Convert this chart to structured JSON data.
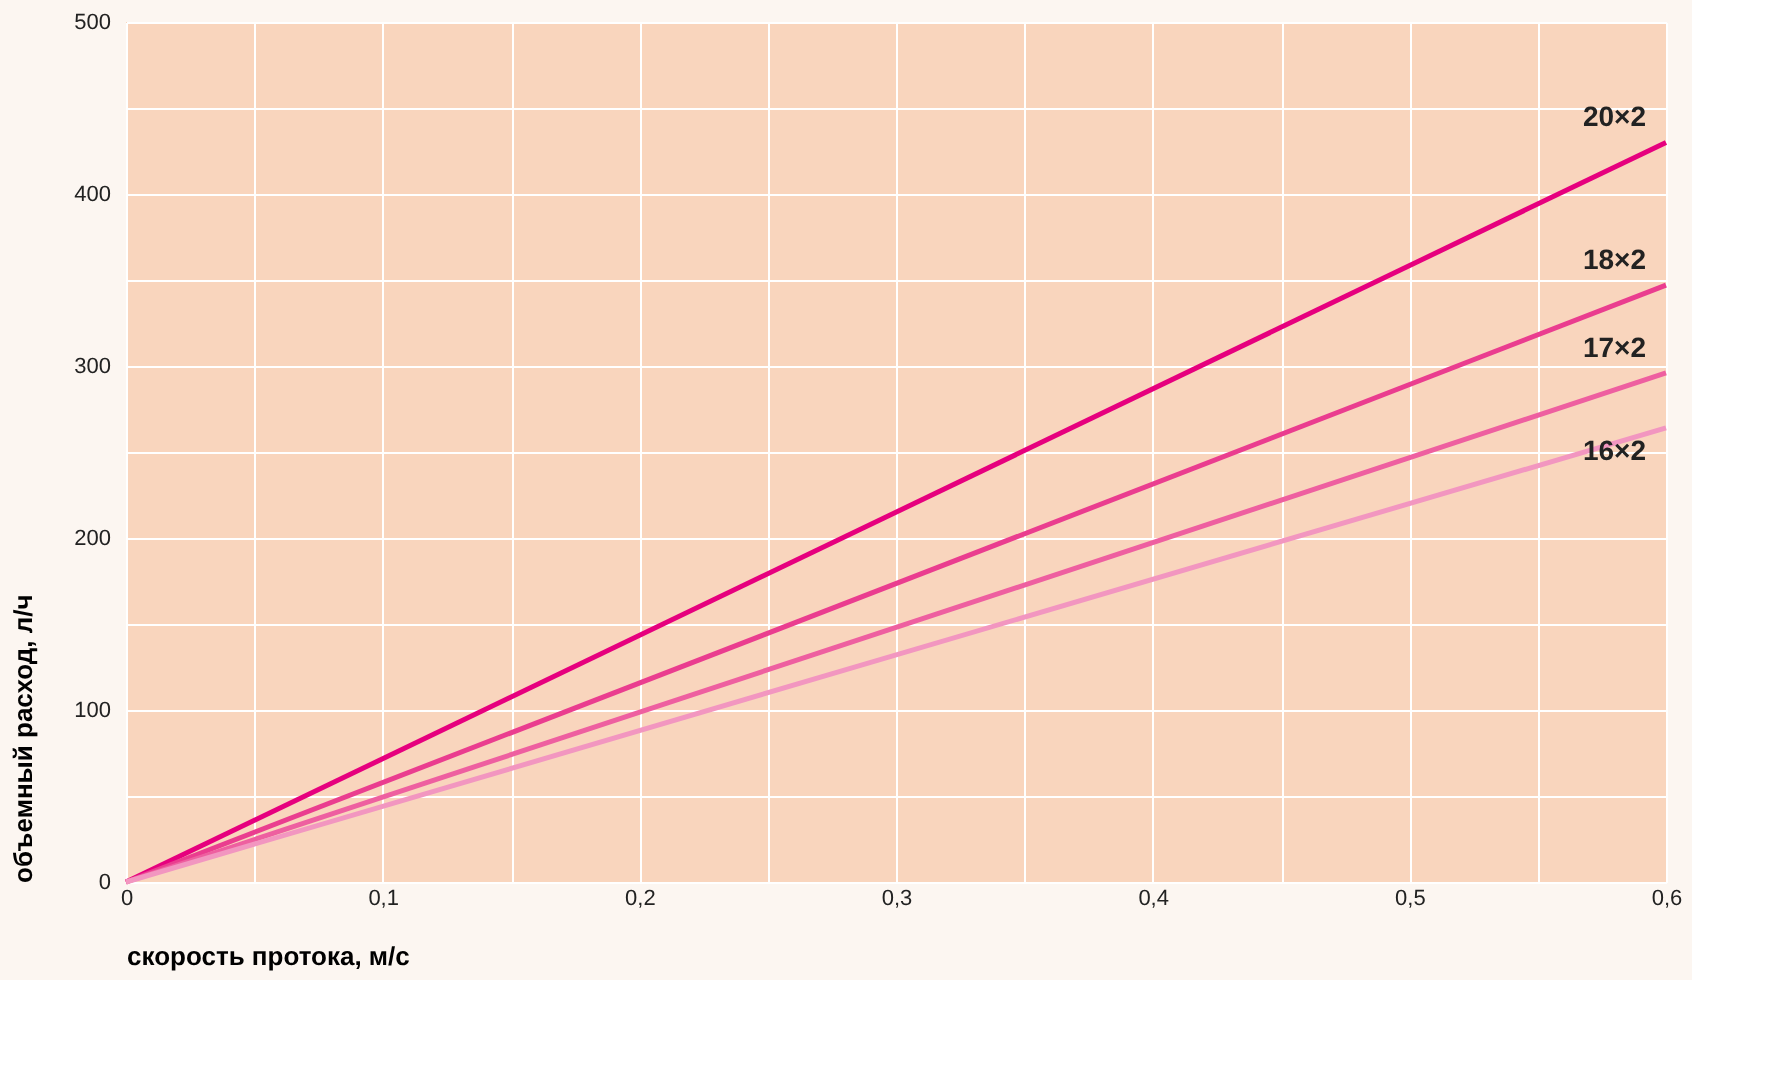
{
  "chart_data": {
    "type": "line",
    "xlabel": "скорость протока, м/с",
    "ylabel": "объемный расход, л/ч",
    "x": [
      0,
      0.6
    ],
    "series": [
      {
        "name": "20×2",
        "color": "#e6007e",
        "values": [
          0,
          430
        ]
      },
      {
        "name": "18×2",
        "color": "#ea3d8f",
        "values": [
          0,
          347
        ]
      },
      {
        "name": "17×2",
        "color": "#ee5fa0",
        "values": [
          0,
          296
        ]
      },
      {
        "name": "16×2",
        "color": "#f296c0",
        "values": [
          0,
          264
        ]
      }
    ],
    "xlim": [
      0,
      0.6
    ],
    "ylim": [
      0,
      500
    ],
    "xticks": [
      0,
      {
        "value": 0.05,
        "label": null
      },
      {
        "value": 0.1,
        "label": "0,1"
      },
      {
        "value": 0.15,
        "label": null
      },
      {
        "value": 0.2,
        "label": "0,2"
      },
      {
        "value": 0.25,
        "label": null
      },
      {
        "value": 0.3,
        "label": "0,3"
      },
      {
        "value": 0.35,
        "label": null
      },
      {
        "value": 0.4,
        "label": "0,4"
      },
      {
        "value": 0.45,
        "label": null
      },
      {
        "value": 0.5,
        "label": "0,5"
      },
      {
        "value": 0.55,
        "label": null
      },
      {
        "value": 0.6,
        "label": "0,6"
      }
    ],
    "yticks": [
      0,
      {
        "value": 50,
        "label": null
      },
      100,
      {
        "value": 150,
        "label": null
      },
      200,
      {
        "value": 250,
        "label": null
      },
      300,
      {
        "value": 350,
        "label": null
      },
      400,
      {
        "value": 450,
        "label": null
      },
      500
    ],
    "grid": true,
    "legend": false,
    "marker": "none",
    "line_style": "solid"
  }
}
